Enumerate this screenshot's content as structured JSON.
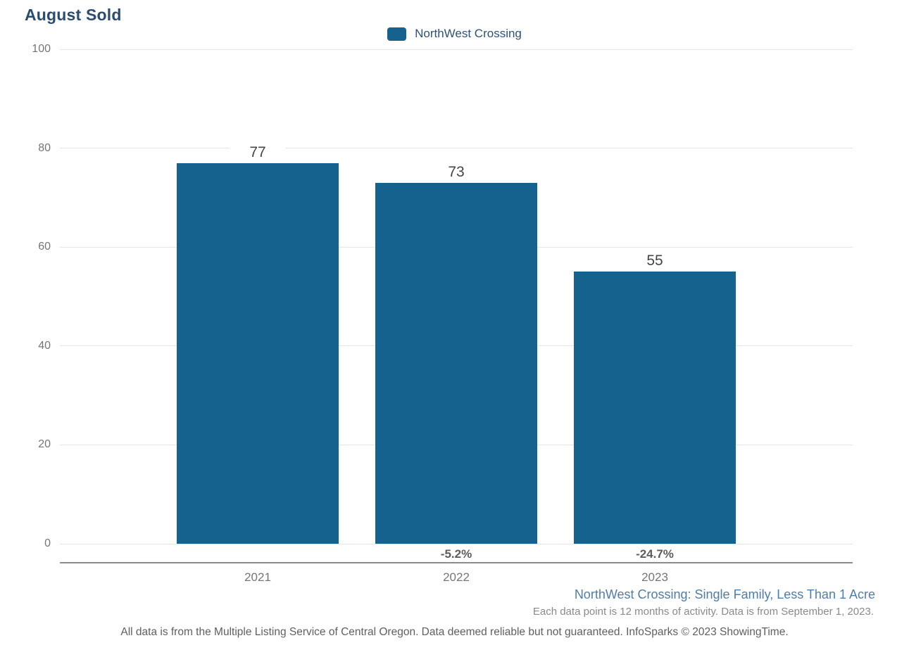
{
  "title": "August Sold",
  "legend": {
    "label": "NorthWest Crossing",
    "swatch_color": "#15628e"
  },
  "chart_data": {
    "type": "bar",
    "title": "August Sold",
    "series_name": "NorthWest Crossing",
    "categories": [
      "2021",
      "2022",
      "2023"
    ],
    "values": [
      77,
      73,
      55
    ],
    "bar_value_labels": [
      "77",
      "73",
      "55"
    ],
    "pct_change_labels": [
      "",
      "-5.2%",
      "-24.7%"
    ],
    "xlabel": "",
    "ylabel": "",
    "ylim": [
      0,
      100
    ],
    "yticks": [
      0,
      20,
      40,
      60,
      80,
      100
    ],
    "grid": true,
    "legend_position": "top-center",
    "bar_color": "#15628e"
  },
  "footer": {
    "segment_label": "NorthWest Crossing: Single Family, Less Than 1 Acre",
    "data_note": "Each data point is 12 months of activity. Data is from September 1, 2023.",
    "disclaimer": "All data is from the Multiple Listing Service of Central Oregon. Data deemed reliable but not guaranteed. InfoSparks © 2023 ShowingTime."
  }
}
